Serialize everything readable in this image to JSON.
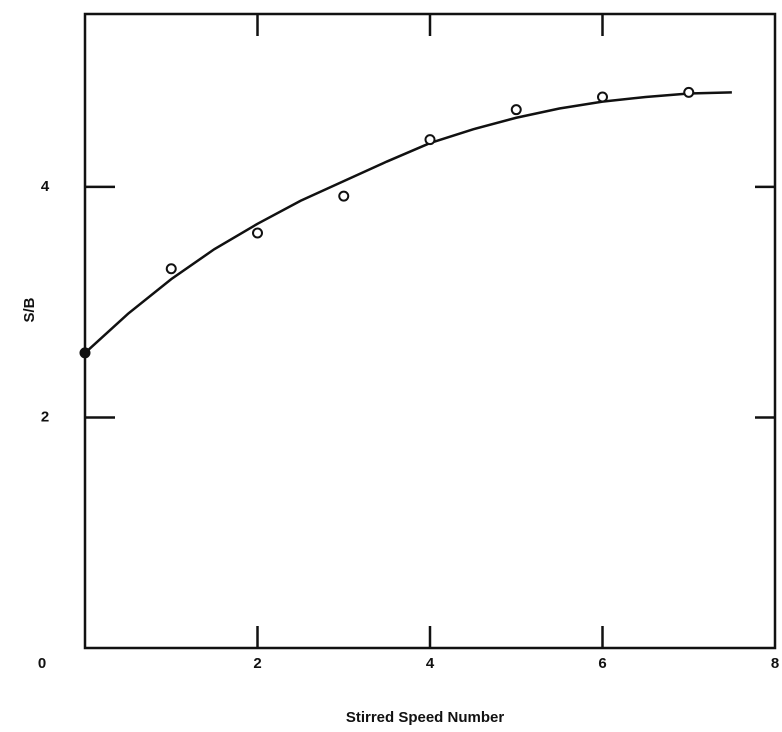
{
  "chart_data": {
    "type": "scatter",
    "x_label": "Stirred Speed Number",
    "y_label": "S/B",
    "xlim": [
      0,
      8
    ],
    "ylim": [
      0,
      5.5
    ],
    "xticks": [
      0,
      2,
      4,
      6,
      8
    ],
    "yticks": [
      2,
      4
    ],
    "points": {
      "x": [
        0,
        1,
        2,
        3,
        4,
        5,
        6,
        7
      ],
      "values": [
        2.56,
        3.29,
        3.6,
        3.92,
        4.41,
        4.67,
        4.78,
        4.82
      ],
      "filled": [
        true,
        false,
        false,
        false,
        false,
        false,
        false,
        false
      ],
      "color": "#111"
    },
    "curve": {
      "x": [
        0,
        0.5,
        1,
        1.5,
        2,
        2.5,
        3,
        3.5,
        4,
        4.5,
        5,
        5.5,
        6,
        6.5,
        7,
        7.5
      ],
      "values": [
        2.56,
        2.9,
        3.2,
        3.46,
        3.68,
        3.88,
        4.05,
        4.22,
        4.38,
        4.5,
        4.6,
        4.68,
        4.74,
        4.78,
        4.81,
        4.82
      ],
      "color": "#111"
    }
  }
}
